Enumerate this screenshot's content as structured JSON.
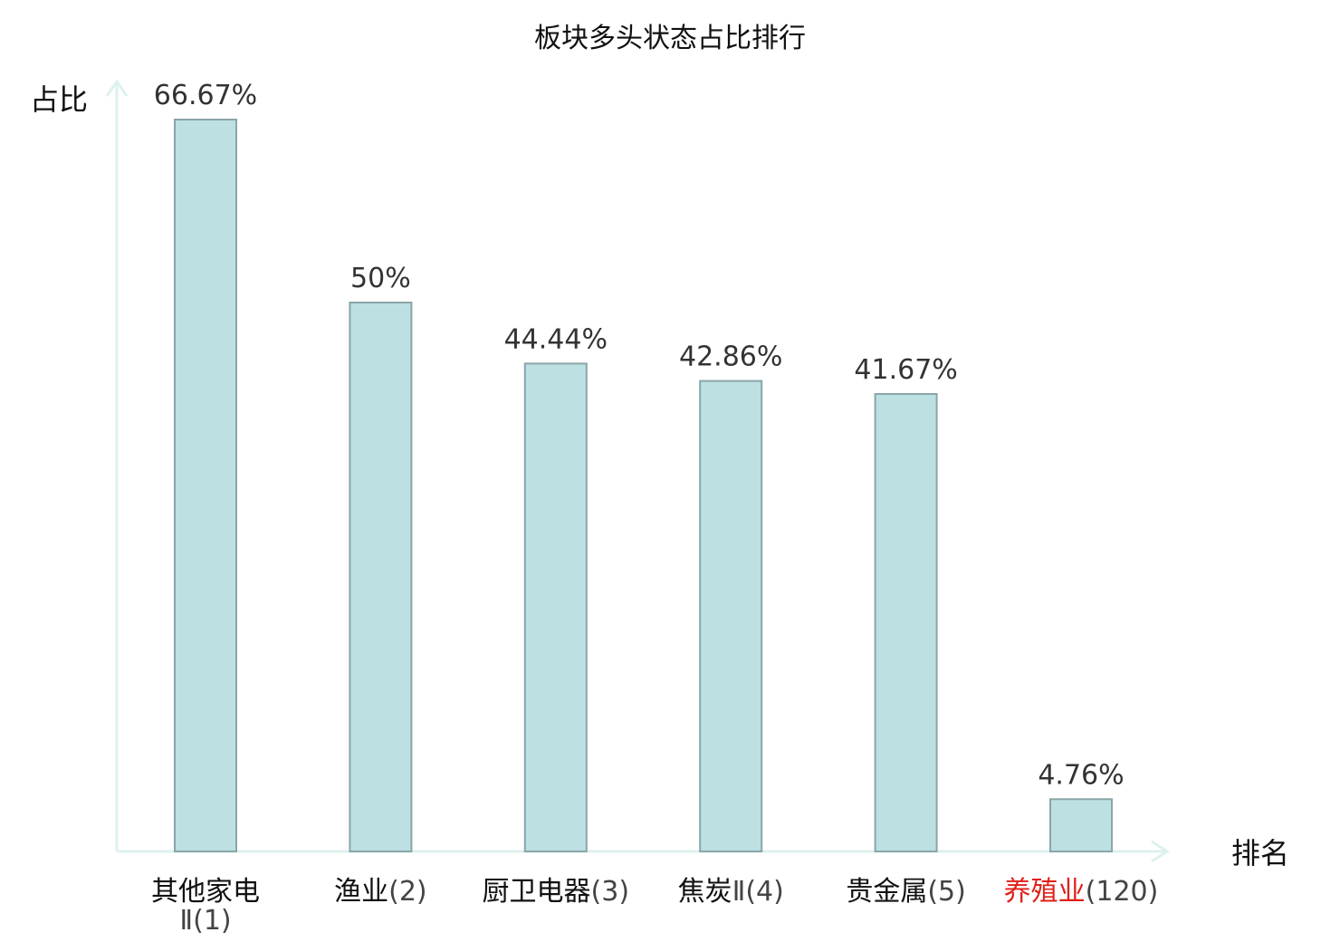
{
  "chart_data": {
    "type": "bar",
    "title": "板块多头状态占比排行",
    "ylabel": "占比",
    "xlabel": "排名",
    "ylim": [
      0,
      70
    ],
    "grid": false,
    "legend": "none",
    "categories": [
      {
        "name": "其他家电",
        "rank": "Ⅱ(1)",
        "highlight": false
      },
      {
        "name": "渔业",
        "rank": "(2)",
        "highlight": false
      },
      {
        "name": "厨卫电器",
        "rank": "(3)",
        "highlight": false
      },
      {
        "name": "焦炭",
        "rank": "Ⅱ(4)",
        "highlight": false
      },
      {
        "name": "贵金属",
        "rank": "(5)",
        "highlight": false
      },
      {
        "name": "养殖业",
        "rank": "(120)",
        "highlight": true
      }
    ],
    "values": [
      66.67,
      50,
      44.44,
      42.86,
      41.67,
      4.76
    ],
    "value_labels": [
      "66.67%",
      "50%",
      "44.44%",
      "42.86%",
      "41.67%",
      "4.76%"
    ],
    "colors": {
      "bar_fill": "#bde0e3",
      "bar_stroke": "#8aa5a8",
      "axis": "#ddf1ef",
      "highlight_text": "#e0201a",
      "category_text": "#111111",
      "rank_text": "#444444",
      "value_text": "#333333"
    }
  }
}
